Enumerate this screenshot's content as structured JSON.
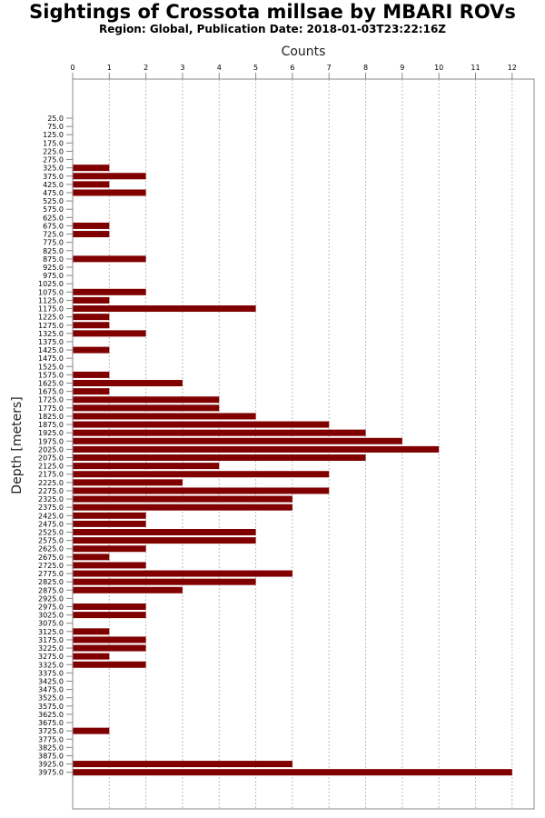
{
  "chart_data": {
    "type": "bar",
    "orientation": "horizontal",
    "title": "Sightings of Crossota millsae by MBARI ROVs",
    "subtitle": "Region: Global, Publication Date: 2018-01-03T23:22:16Z",
    "xlabel": "Counts",
    "ylabel": "Depth [meters]",
    "xlim": [
      0,
      12.6
    ],
    "xticks": [
      "0",
      "1",
      "2",
      "3",
      "4",
      "5",
      "6",
      "7",
      "8",
      "9",
      "10",
      "11",
      "12"
    ],
    "grid": true,
    "bar_color": "#800000",
    "categories": [
      "25.0",
      "75.0",
      "125.0",
      "175.0",
      "225.0",
      "275.0",
      "325.0",
      "375.0",
      "425.0",
      "475.0",
      "525.0",
      "575.0",
      "625.0",
      "675.0",
      "725.0",
      "775.0",
      "825.0",
      "875.0",
      "925.0",
      "975.0",
      "1025.0",
      "1075.0",
      "1125.0",
      "1175.0",
      "1225.0",
      "1275.0",
      "1325.0",
      "1375.0",
      "1425.0",
      "1475.0",
      "1525.0",
      "1575.0",
      "1625.0",
      "1675.0",
      "1725.0",
      "1775.0",
      "1825.0",
      "1875.0",
      "1925.0",
      "1975.0",
      "2025.0",
      "2075.0",
      "2125.0",
      "2175.0",
      "2225.0",
      "2275.0",
      "2325.0",
      "2375.0",
      "2425.0",
      "2475.0",
      "2525.0",
      "2575.0",
      "2625.0",
      "2675.0",
      "2725.0",
      "2775.0",
      "2825.0",
      "2875.0",
      "2925.0",
      "2975.0",
      "3025.0",
      "3075.0",
      "3125.0",
      "3175.0",
      "3225.0",
      "3275.0",
      "3325.0",
      "3375.0",
      "3425.0",
      "3475.0",
      "3525.0",
      "3575.0",
      "3625.0",
      "3675.0",
      "3725.0",
      "3775.0",
      "3825.0",
      "3875.0",
      "3925.0",
      "3975.0"
    ],
    "values": [
      0,
      0,
      0,
      0,
      0,
      0,
      1,
      2,
      1,
      2,
      0,
      0,
      0,
      1,
      1,
      0,
      0,
      2,
      0,
      0,
      0,
      2,
      1,
      5,
      1,
      1,
      2,
      0,
      1,
      0,
      0,
      1,
      3,
      1,
      4,
      4,
      5,
      7,
      8,
      9,
      10,
      8,
      4,
      7,
      3,
      7,
      6,
      6,
      2,
      2,
      5,
      5,
      2,
      1,
      2,
      6,
      5,
      3,
      0,
      2,
      2,
      0,
      1,
      2,
      2,
      1,
      2,
      0,
      0,
      0,
      0,
      0,
      0,
      0,
      1,
      0,
      0,
      0,
      6,
      12
    ]
  }
}
